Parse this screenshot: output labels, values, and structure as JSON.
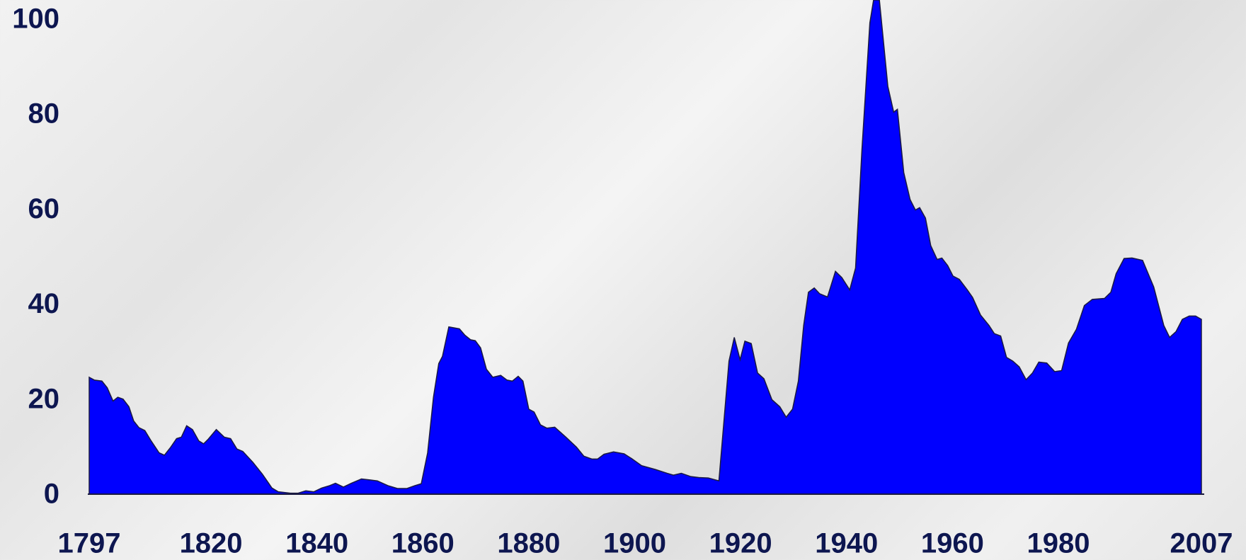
{
  "chart_data": {
    "type": "area",
    "color": "#0000ff",
    "line_color": "#1a1a40",
    "x": [
      1797,
      1798,
      1799.4,
      1800.4,
      1801.5,
      1802.4,
      1803.4,
      1804.5,
      1805.4,
      1806.4,
      1807.5,
      1808.7,
      1810.2,
      1811.2,
      1812.4,
      1813.5,
      1814.4,
      1815.4,
      1816.5,
      1817.7,
      1818.6,
      1819.5,
      1821,
      1822.5,
      1823.7,
      1824.9,
      1826,
      1827.9,
      1829.7,
      1831.5,
      1832.7,
      1835,
      1836.4,
      1837.9,
      1839.4,
      1840.9,
      1842.4,
      1843.5,
      1845,
      1846.5,
      1848.4,
      1850,
      1851.4,
      1853.4,
      1855.2,
      1857,
      1858.5,
      1859.7,
      1860.9,
      1862,
      1863,
      1863.7,
      1864.9,
      1866.9,
      1867.9,
      1869,
      1869.9,
      1870.9,
      1872,
      1873.2,
      1874.7,
      1875.9,
      1876.9,
      1878,
      1878.9,
      1880,
      1881,
      1882.2,
      1883.4,
      1884.9,
      1887,
      1889,
      1890.4,
      1891.9,
      1893,
      1894.2,
      1896,
      1898,
      1899.4,
      1901.3,
      1903.9,
      1906.1,
      1907.3,
      1908.8,
      1910.6,
      1912.1,
      1913.9,
      1915.9,
      1917.8,
      1918.8,
      1919.9,
      1920.8,
      1922,
      1923.2,
      1924.4,
      1925.9,
      1927.4,
      1928.6,
      1929.8,
      1930.9,
      1931.9,
      1932.8,
      1933.9,
      1934.9,
      1936.4,
      1937.9,
      1939.1,
      1940.6,
      1941.7,
      1942.9,
      1944.4,
      1945.1,
      1946.2,
      1947.8,
      1948.9,
      1949.6,
      1950.8,
      1952,
      1953,
      1953.8,
      1954.9,
      1955.9,
      1957.1,
      1958,
      1959.1,
      1960.1,
      1961.3,
      1962.8,
      1963.8,
      1965.3,
      1966.9,
      1967.9,
      1969.1,
      1970.2,
      1971.4,
      1972.6,
      1973.9,
      1975.1,
      1976.3,
      1977.8,
      1979.3,
      1980.6,
      1981.9,
      1983.4,
      1984.9,
      1986.4,
      1988.7,
      1989.9,
      1990.9,
      1992.4,
      1993.9,
      1995.9,
      1998,
      1999.9,
      2001,
      2002.2,
      2003.4,
      2004.7,
      2005.9,
      2007
    ],
    "values": [
      24.6,
      24,
      23.8,
      22.4,
      19.6,
      20.4,
      20,
      18.4,
      15.4,
      14,
      13.4,
      11.2,
      8.7,
      8.2,
      9.9,
      11.7,
      12,
      14.4,
      13.6,
      11.2,
      10.6,
      11.6,
      13.6,
      12,
      11.7,
      9.5,
      9,
      6.7,
      4.2,
      1.3,
      0.5,
      0.2,
      0.2,
      0.7,
      0.5,
      1.3,
      1.8,
      2.3,
      1.5,
      2.3,
      3.2,
      3,
      2.8,
      1.8,
      1.2,
      1.2,
      1.8,
      2.2,
      8.7,
      20.4,
      27.5,
      29,
      35.2,
      34.8,
      33.5,
      32.5,
      32.3,
      30.8,
      26.3,
      24.6,
      25,
      24,
      23.8,
      24.8,
      23.8,
      17.9,
      17.3,
      14.6,
      13.9,
      14.1,
      12,
      9.9,
      8,
      7.4,
      7.4,
      8.4,
      8.9,
      8.5,
      7.5,
      6,
      5.2,
      4.4,
      4,
      4.4,
      3.7,
      3.5,
      3.4,
      2.8,
      28,
      33,
      28.3,
      32.2,
      31.7,
      25.5,
      24.3,
      19.9,
      18.4,
      16.2,
      17.9,
      23.8,
      35.5,
      42.5,
      43.4,
      42.2,
      41.5,
      46.9,
      45.6,
      43,
      47.6,
      72.4,
      99.2,
      104,
      104,
      85.8,
      80.4,
      81,
      67.7,
      62,
      59.8,
      60.3,
      58.1,
      52.3,
      49.4,
      49.7,
      48.1,
      45.9,
      45.2,
      43,
      41.4,
      37.7,
      35.5,
      33.8,
      33.3,
      28.8,
      28,
      26.8,
      24.1,
      25.5,
      27.8,
      27.6,
      25.8,
      26,
      31.8,
      34.7,
      39.7,
      41,
      41.2,
      42.5,
      46.4,
      49.6,
      49.7,
      49.2,
      43.6,
      35.5,
      33,
      34.2,
      36.8,
      37.5,
      37.5,
      36.8
    ],
    "xlim": [
      1797,
      2007
    ],
    "xticks": [
      1797,
      1820,
      1840,
      1860,
      1880,
      1900,
      1920,
      1940,
      1960,
      1980,
      2007
    ],
    "ylim": [
      0,
      104
    ],
    "yticks": [
      0,
      20,
      40,
      60,
      80,
      100
    ]
  }
}
